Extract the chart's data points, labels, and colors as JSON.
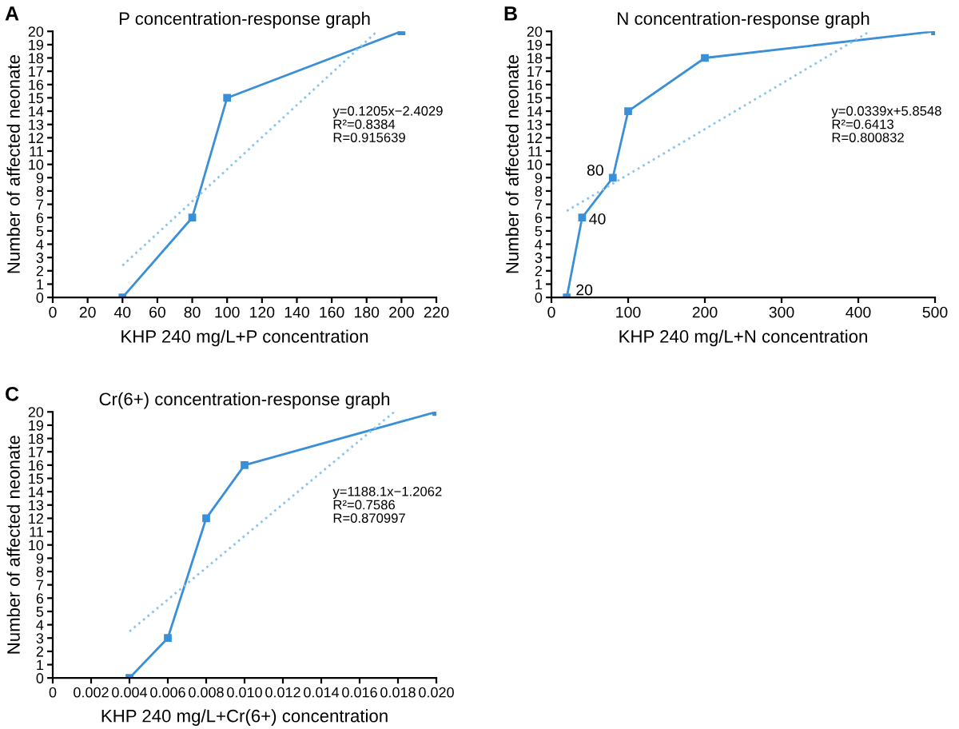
{
  "chart_data": [
    {
      "type": "line",
      "title": "P concentration-response graph",
      "xlabel": "KHP 240 mg/L+P concentration",
      "ylabel": "Number of affected neonate",
      "annotations": [
        "A",
        "y=0.1205x−2.4029",
        "R²=0.8384",
        "R=0.915639"
      ],
      "series": [
        {
          "color": "#3a8fd6",
          "x": [
            40,
            80,
            100,
            200
          ],
          "values": [
            0,
            6,
            15,
            20
          ],
          "marker": "square",
          "line_style": "solid"
        },
        {
          "type": "line",
          "color": "#8cc4ec",
          "x": [
            40,
            186
          ],
          "values": [
            2.4,
            20
          ],
          "marker": "none",
          "line_style": "dotted"
        }
      ],
      "xlim": [
        0,
        220
      ],
      "xticks": [
        0,
        20,
        40,
        60,
        80,
        100,
        120,
        140,
        160,
        180,
        200,
        220
      ],
      "ylim": [
        0,
        20
      ],
      "yticks": [
        0,
        1,
        2,
        3,
        4,
        5,
        6,
        7,
        8,
        9,
        10,
        11,
        12,
        13,
        14,
        15,
        16,
        17,
        18,
        19,
        20
      ],
      "grid": false,
      "legend": false
    },
    {
      "type": "line",
      "title": "N concentration-response graph",
      "xlabel": "KHP 240 mg/L+N concentration",
      "ylabel": "Number of affected neonate",
      "annotations": [
        "B",
        "y=0.0339x+5.8548",
        "R²=0.6413",
        "R=0.800832",
        {
          "text": "20",
          "x": 20,
          "y": 0
        },
        {
          "text": "40",
          "x": 40,
          "y": 6
        },
        {
          "text": "80",
          "x": 80,
          "y": 9
        }
      ],
      "series": [
        {
          "color": "#3a8fd6",
          "x": [
            20,
            40,
            80,
            100,
            200,
            500
          ],
          "values": [
            0,
            6,
            9,
            14,
            18,
            20
          ],
          "marker": "square",
          "line_style": "solid"
        },
        {
          "type": "line",
          "color": "#8cc4ec",
          "x": [
            20,
            415
          ],
          "values": [
            6.5,
            20
          ],
          "marker": "none",
          "line_style": "dotted"
        }
      ],
      "xlim": [
        0,
        500
      ],
      "xticks": [
        0,
        100,
        200,
        300,
        400,
        500
      ],
      "ylim": [
        0,
        20
      ],
      "yticks": [
        0,
        1,
        2,
        3,
        4,
        5,
        6,
        7,
        8,
        9,
        10,
        11,
        12,
        13,
        14,
        15,
        16,
        17,
        18,
        19,
        20
      ],
      "grid": false,
      "legend": false
    },
    {
      "type": "line",
      "title": "Cr(6+) concentration-response graph",
      "xlabel": "KHP 240 mg/L+Cr(6+) concentration",
      "ylabel": "Number of affected neonate",
      "annotations": [
        "C",
        "y=1188.1x−1.2062",
        "R²=0.7586",
        "R=0.870997"
      ],
      "series": [
        {
          "color": "#3a8fd6",
          "x": [
            0.004,
            0.006,
            0.008,
            0.01,
            0.02
          ],
          "values": [
            0,
            3,
            12,
            16,
            20
          ],
          "marker": "square",
          "line_style": "solid"
        },
        {
          "type": "line",
          "color": "#8cc4ec",
          "x": [
            0.004,
            0.0178
          ],
          "values": [
            3.5,
            20
          ],
          "marker": "none",
          "line_style": "dotted"
        }
      ],
      "xlim": [
        0,
        0.02
      ],
      "xticks": [
        {
          "value": 0,
          "label": "0"
        },
        0.002,
        0.004,
        0.006,
        0.008,
        {
          "value": 0.01,
          "label": "0.010"
        },
        0.012,
        0.014,
        0.016,
        0.018,
        {
          "value": 0.02,
          "label": "0.020"
        }
      ],
      "ylim": [
        0,
        20
      ],
      "yticks": [
        0,
        1,
        2,
        3,
        4,
        5,
        6,
        7,
        8,
        9,
        10,
        11,
        12,
        13,
        14,
        15,
        16,
        17,
        18,
        19,
        20
      ],
      "grid": false,
      "legend": false
    }
  ]
}
